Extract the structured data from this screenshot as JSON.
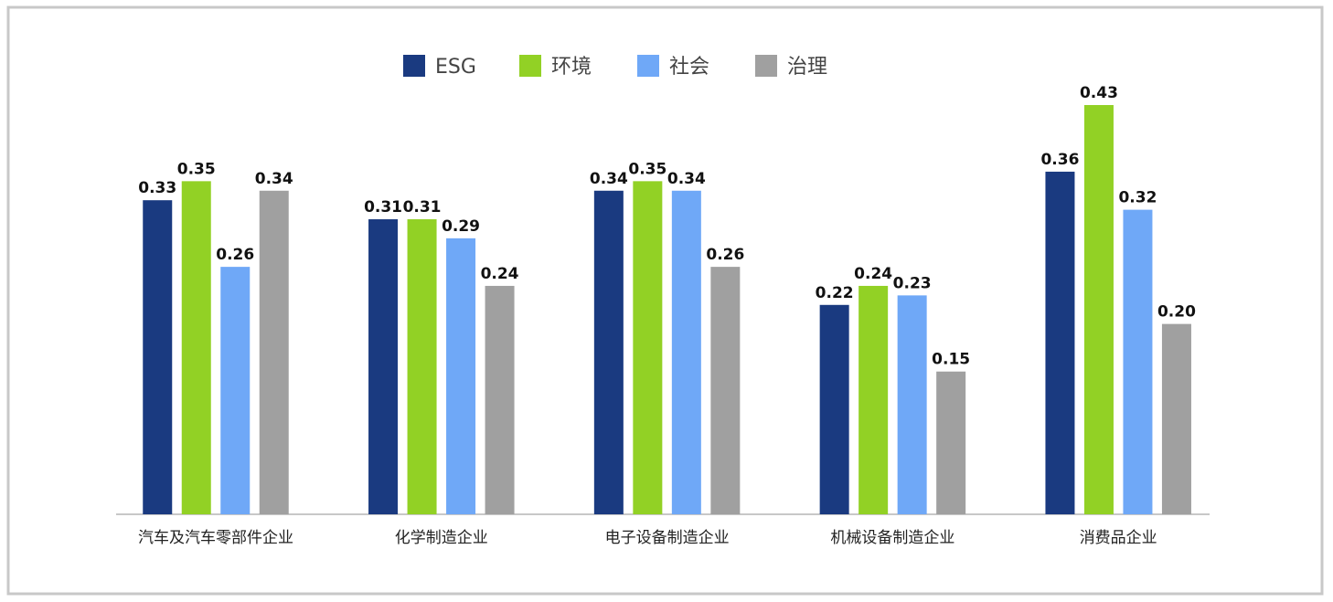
{
  "chart_data": {
    "type": "bar",
    "categories": [
      "汽车及汽车零部件企业",
      "化学制造企业",
      "电子设备制造企业",
      "机械设备制造企业",
      "消费品企业"
    ],
    "series": [
      {
        "name": "ESG",
        "color": "#1a3a80",
        "values": [
          0.33,
          0.31,
          0.34,
          0.22,
          0.36
        ],
        "value_labels": [
          "0.33",
          "0.31",
          "0.34",
          "0.22",
          "0.36"
        ]
      },
      {
        "name": "环境",
        "color": "#92d125",
        "values": [
          0.35,
          0.31,
          0.35,
          0.24,
          0.43
        ],
        "value_labels": [
          "0.35",
          "0.31",
          "0.35",
          "0.24",
          "0.43"
        ]
      },
      {
        "name": "社会",
        "color": "#6fa8f7",
        "values": [
          0.26,
          0.29,
          0.34,
          0.23,
          0.32
        ],
        "value_labels": [
          "0.26",
          "0.29",
          "0.34",
          "0.23",
          "0.32"
        ]
      },
      {
        "name": "治理",
        "color": "#a0a0a0",
        "values": [
          0.34,
          0.24,
          0.26,
          0.15,
          0.2
        ],
        "value_labels": [
          "0.34",
          "0.24",
          "0.26",
          "0.15",
          "0.20"
        ]
      }
    ],
    "legend": "top"
  }
}
